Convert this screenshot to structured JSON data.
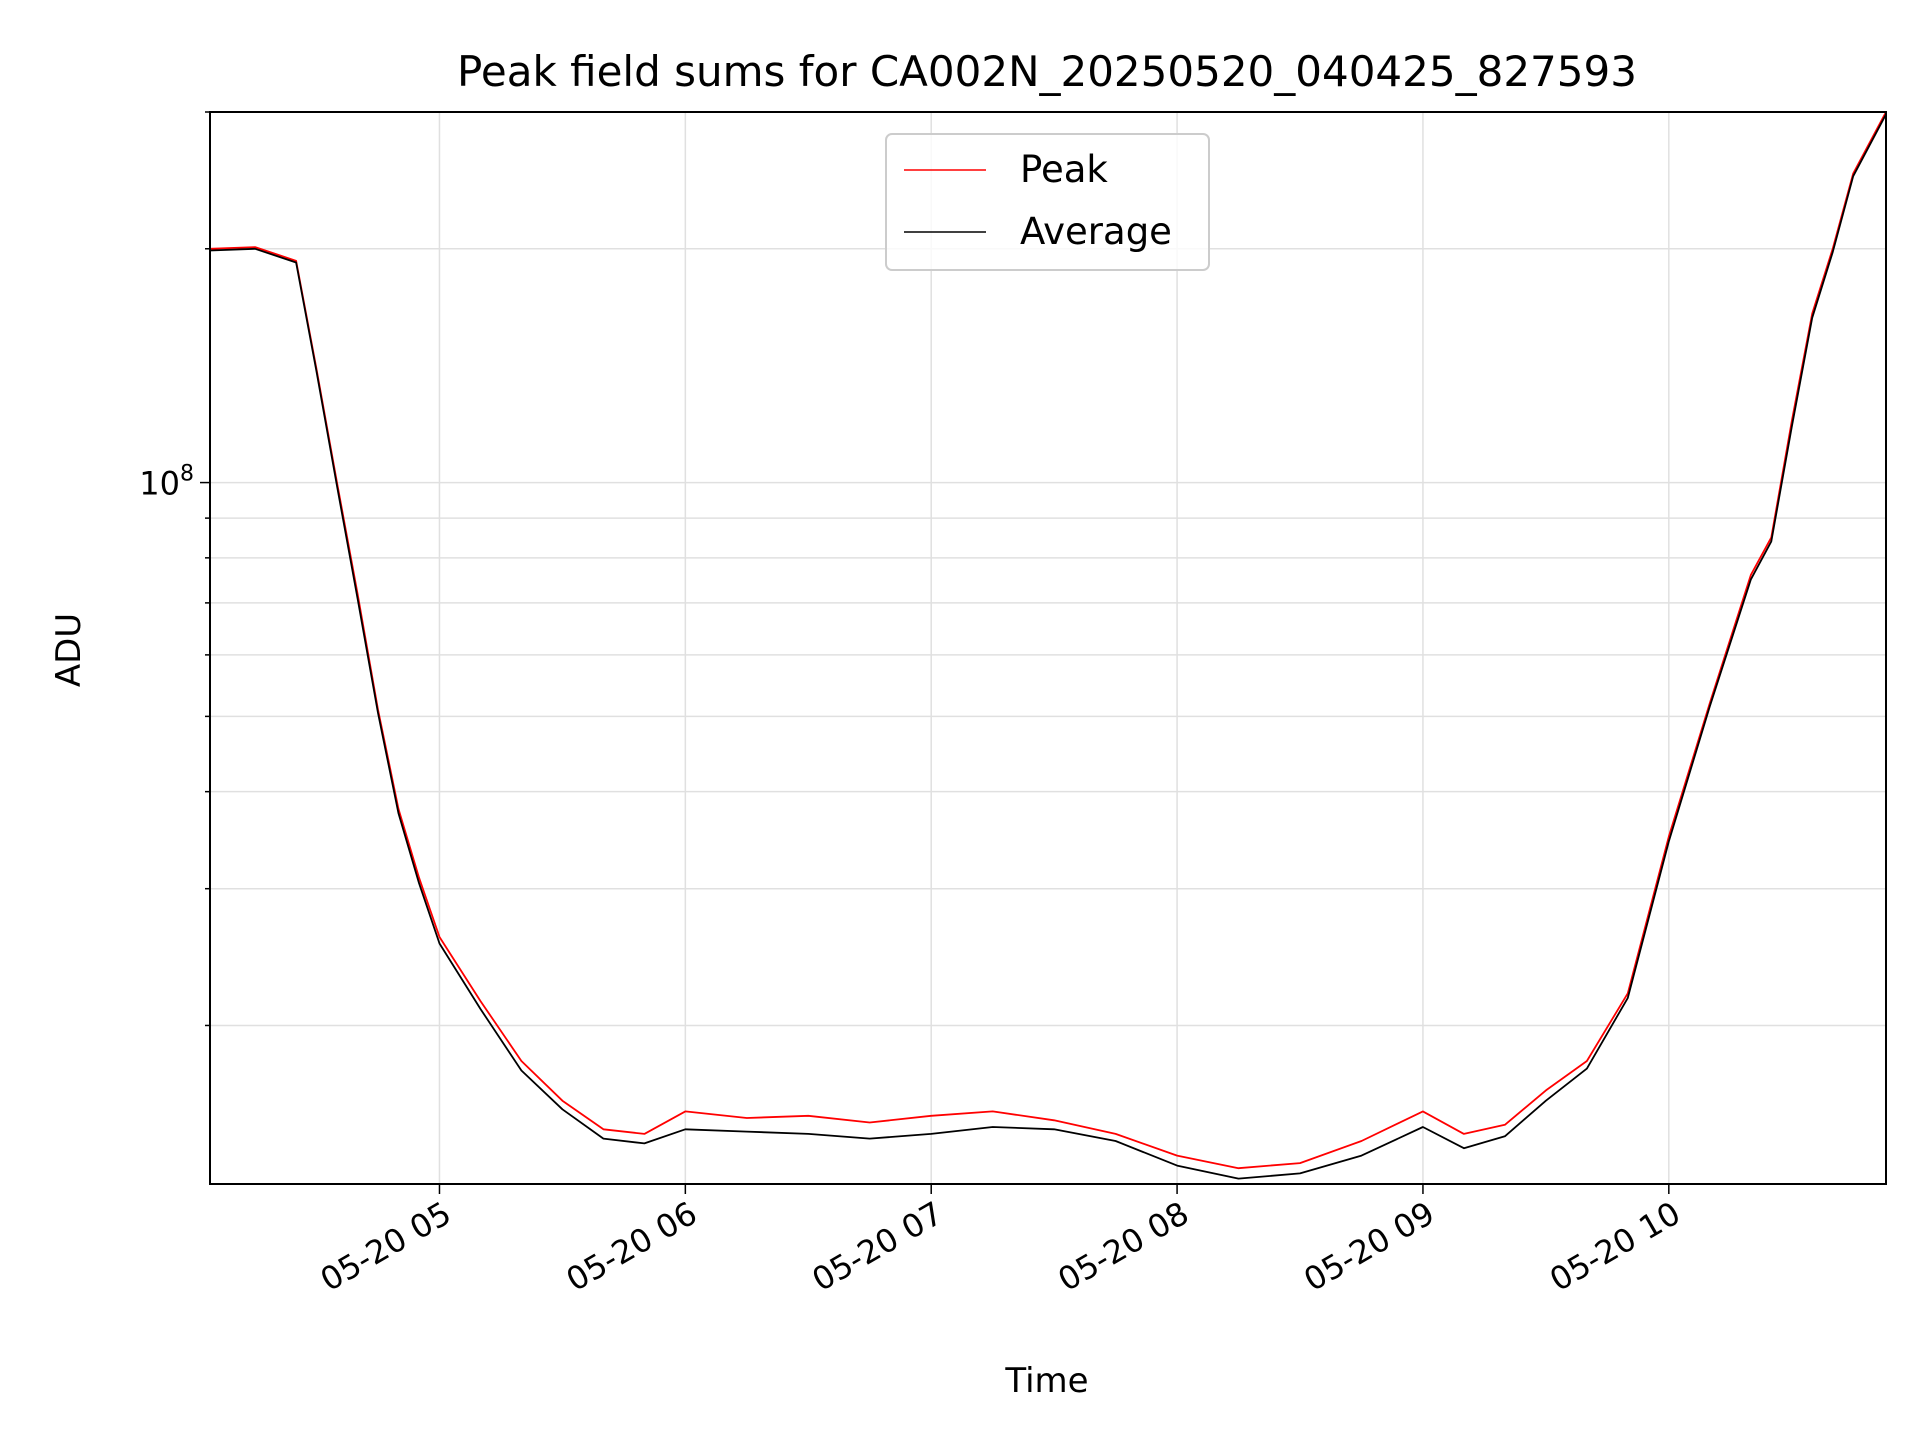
{
  "chart_data": {
    "type": "line",
    "title": "Peak field sums for CA002N_20250520_040425_827593",
    "xlabel": "Time",
    "ylabel": "ADU",
    "yscale": "log",
    "grid": true,
    "legend_position": "top-center",
    "x_range": [
      "05-20 04:04",
      "05-20 10:53"
    ],
    "ylim": [
      12500000,
      300000000
    ],
    "x_ticks": [
      "05-20 05",
      "05-20 06",
      "05-20 07",
      "05-20 08",
      "05-20 09",
      "05-20 10"
    ],
    "y_ticks": [
      {
        "base": "10",
        "exp": "8"
      }
    ],
    "colors": {
      "Peak": "#ff0000",
      "Average": "#000000",
      "grid": "#e0e0e0"
    },
    "series": [
      {
        "name": "Peak",
        "x": [
          "05-20 04:04",
          "05-20 04:15",
          "05-20 04:25",
          "05-20 04:30",
          "05-20 04:35",
          "05-20 04:40",
          "05-20 04:45",
          "05-20 04:50",
          "05-20 04:55",
          "05-20 05:00",
          "05-20 05:10",
          "05-20 05:20",
          "05-20 05:30",
          "05-20 05:40",
          "05-20 05:50",
          "05-20 06:00",
          "05-20 06:15",
          "05-20 06:30",
          "05-20 06:45",
          "05-20 07:00",
          "05-20 07:15",
          "05-20 07:30",
          "05-20 07:45",
          "05-20 08:00",
          "05-20 08:15",
          "05-20 08:30",
          "05-20 08:45",
          "05-20 09:00",
          "05-20 09:10",
          "05-20 09:20",
          "05-20 09:30",
          "05-20 09:40",
          "05-20 09:50",
          "05-20 10:00",
          "05-20 10:10",
          "05-20 10:20",
          "05-20 10:25",
          "05-20 10:30",
          "05-20 10:35",
          "05-20 10:40",
          "05-20 10:45",
          "05-20 10:53"
        ],
        "values": [
          200000000,
          201000000,
          193000000,
          140000000,
          100000000,
          72000000,
          51000000,
          38000000,
          31000000,
          26000000,
          21500000,
          18000000,
          16000000,
          14700000,
          14500000,
          15500000,
          15200000,
          15300000,
          15000000,
          15300000,
          15500000,
          15100000,
          14500000,
          13600000,
          13100000,
          13300000,
          14200000,
          15500000,
          14500000,
          14900000,
          16500000,
          18000000,
          22000000,
          35000000,
          52000000,
          76000000,
          85000000,
          120000000,
          165000000,
          200000000,
          250000000,
          300000000
        ]
      },
      {
        "name": "Average",
        "x": [
          "05-20 04:04",
          "05-20 04:15",
          "05-20 04:25",
          "05-20 04:30",
          "05-20 04:35",
          "05-20 04:40",
          "05-20 04:45",
          "05-20 04:50",
          "05-20 04:55",
          "05-20 05:00",
          "05-20 05:10",
          "05-20 05:20",
          "05-20 05:30",
          "05-20 05:40",
          "05-20 05:50",
          "05-20 06:00",
          "05-20 06:15",
          "05-20 06:30",
          "05-20 06:45",
          "05-20 07:00",
          "05-20 07:15",
          "05-20 07:30",
          "05-20 07:45",
          "05-20 08:00",
          "05-20 08:15",
          "05-20 08:30",
          "05-20 08:45",
          "05-20 09:00",
          "05-20 09:10",
          "05-20 09:20",
          "05-20 09:30",
          "05-20 09:40",
          "05-20 09:50",
          "05-20 10:00",
          "05-20 10:10",
          "05-20 10:20",
          "05-20 10:25",
          "05-20 10:30",
          "05-20 10:35",
          "05-20 10:40",
          "05-20 10:45",
          "05-20 10:53"
        ],
        "values": [
          199000000,
          200000000,
          192000000,
          139000000,
          99000000,
          71000000,
          50500000,
          37500000,
          30500000,
          25500000,
          21000000,
          17500000,
          15600000,
          14300000,
          14100000,
          14700000,
          14600000,
          14500000,
          14300000,
          14500000,
          14800000,
          14700000,
          14200000,
          13200000,
          12700000,
          12900000,
          13600000,
          14800000,
          13900000,
          14400000,
          16000000,
          17600000,
          21700000,
          34500000,
          51500000,
          75000000,
          84000000,
          118000000,
          163000000,
          198000000,
          248000000,
          298000000
        ]
      }
    ]
  }
}
